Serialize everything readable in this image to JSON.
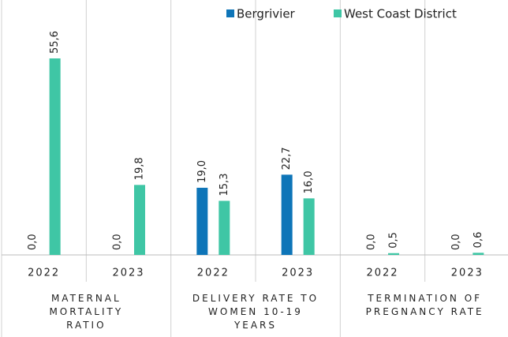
{
  "chart_data": {
    "type": "bar",
    "categories": [
      "2022",
      "2023",
      "2022",
      "2023",
      "2022",
      "2023"
    ],
    "groups": [
      "MATERNAL MORTALITY RATIO",
      "DELIVERY RATE TO WOMEN 10-19 YEARS",
      "TERMINATION OF PREGNANCY RATE"
    ],
    "series": [
      {
        "name": "Bergrivier",
        "color": "#0e75b8",
        "values": [
          0.0,
          0.0,
          19.0,
          22.7,
          0.0,
          0.0
        ],
        "value_labels": [
          "0,0",
          "0,0",
          "19,0",
          "22,7",
          "0,0",
          "0,0"
        ]
      },
      {
        "name": "West Coast District",
        "color": "#3fc6a5",
        "values": [
          55.6,
          19.8,
          15.3,
          16.0,
          0.5,
          0.6
        ],
        "value_labels": [
          "55,6",
          "19,8",
          "15,3",
          "16,0",
          "0,5",
          "0,6"
        ]
      }
    ]
  }
}
